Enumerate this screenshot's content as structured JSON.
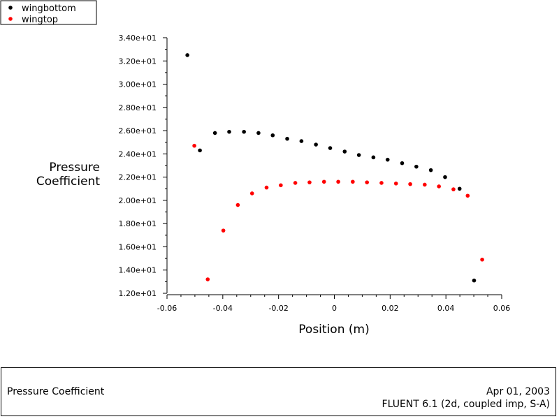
{
  "chart_data": {
    "type": "scatter",
    "title": "",
    "xlabel": "Position (m)",
    "ylabel_lines": [
      "Pressure",
      "Coefficient"
    ],
    "xlim": [
      -0.06,
      0.06
    ],
    "ylim": [
      12.0,
      34.0
    ],
    "x_ticks": [
      -0.06,
      -0.04,
      -0.02,
      0,
      0.02,
      0.04,
      0.06
    ],
    "x_tick_labels": [
      "-0.06",
      "-0.04",
      "-0.02",
      "0",
      "0.02",
      "0.04",
      "0.06"
    ],
    "y_ticks": [
      12,
      14,
      16,
      18,
      20,
      22,
      24,
      26,
      28,
      30,
      32,
      34
    ],
    "y_tick_labels": [
      "1.20e+01",
      "1.40e+01",
      "1.60e+01",
      "1.80e+01",
      "2.00e+01",
      "2.20e+01",
      "2.40e+01",
      "2.60e+01",
      "2.80e+01",
      "3.00e+01",
      "3.20e+01",
      "3.40e+01"
    ],
    "grid": false,
    "legend_position": "top-left",
    "series": [
      {
        "name": "wingbottom",
        "color": "#000000",
        "x": [
          -0.0527,
          -0.0482,
          -0.0428,
          -0.0377,
          -0.0324,
          -0.0272,
          -0.0221,
          -0.0169,
          -0.0118,
          -0.0066,
          -0.0015,
          0.0037,
          0.0088,
          0.014,
          0.0191,
          0.0243,
          0.0294,
          0.0346,
          0.0397,
          0.0449,
          0.0501
        ],
        "y": [
          32.5,
          24.3,
          25.8,
          25.9,
          25.9,
          25.8,
          25.6,
          25.3,
          25.1,
          24.8,
          24.5,
          24.2,
          23.9,
          23.7,
          23.5,
          23.2,
          22.9,
          22.6,
          22.0,
          21.0,
          13.1
        ]
      },
      {
        "name": "wingtop",
        "color": "#ff0000",
        "x": [
          -0.0502,
          -0.0454,
          -0.0398,
          -0.0346,
          -0.0295,
          -0.0243,
          -0.0192,
          -0.014,
          -0.0089,
          -0.0037,
          0.0014,
          0.0066,
          0.0117,
          0.0169,
          0.0221,
          0.0272,
          0.0324,
          0.0375,
          0.0427,
          0.0478,
          0.053
        ],
        "y": [
          24.7,
          13.2,
          17.4,
          19.6,
          20.6,
          21.1,
          21.3,
          21.5,
          21.55,
          21.6,
          21.6,
          21.6,
          21.55,
          21.5,
          21.45,
          21.4,
          21.35,
          21.2,
          20.95,
          20.4,
          14.9
        ]
      }
    ]
  },
  "footer": {
    "left_title": "Pressure Coefficient",
    "date": "Apr 01, 2003",
    "solver": "FLUENT 6.1 (2d, coupled imp, S-A)"
  }
}
